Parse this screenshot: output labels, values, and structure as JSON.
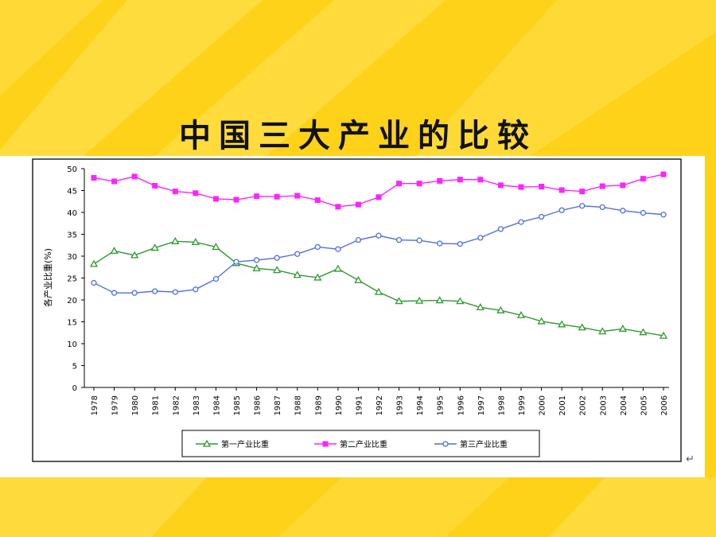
{
  "slide": {
    "title": "中国三大产业的比较",
    "return_mark": "↵"
  },
  "colors": {
    "background": "#FFD21A",
    "stripe": "#FFE45C",
    "primary": "#2E9A2E",
    "secondary": "#FF22FF",
    "tertiary": "#4F6FE0"
  },
  "chart_data": {
    "type": "line",
    "ylabel": "各产业比重(%)",
    "ylim": [
      0,
      50
    ],
    "yticks": [
      0,
      5,
      10,
      15,
      20,
      25,
      30,
      35,
      40,
      45,
      50
    ],
    "grid": false,
    "legend_position": "bottom",
    "x": [
      "1978",
      "1979",
      "1980",
      "1981",
      "1982",
      "1983",
      "1984",
      "1985",
      "1986",
      "1987",
      "1988",
      "1989",
      "1990",
      "1991",
      "1992",
      "1993",
      "1994",
      "1995",
      "1996",
      "1997",
      "1998",
      "1999",
      "2000",
      "2001",
      "2002",
      "2003",
      "2004",
      "2005",
      "2006"
    ],
    "series": [
      {
        "name": "第一产业比重",
        "marker": "triangle",
        "color": "#2E9A2E",
        "values": [
          28.2,
          31.2,
          30.2,
          31.9,
          33.4,
          33.2,
          32.1,
          28.4,
          27.2,
          26.8,
          25.7,
          25.1,
          27.1,
          24.5,
          21.8,
          19.7,
          19.8,
          19.9,
          19.7,
          18.3,
          17.6,
          16.5,
          15.1,
          14.4,
          13.7,
          12.8,
          13.4,
          12.6,
          11.8
        ]
      },
      {
        "name": "第二产业比重",
        "marker": "square",
        "color": "#FF22FF",
        "values": [
          47.9,
          47.1,
          48.2,
          46.1,
          44.8,
          44.4,
          43.1,
          42.9,
          43.7,
          43.6,
          43.8,
          42.8,
          41.3,
          41.8,
          43.5,
          46.6,
          46.6,
          47.2,
          47.5,
          47.5,
          46.2,
          45.8,
          45.9,
          45.1,
          44.8,
          46.0,
          46.2,
          47.7,
          48.7
        ]
      },
      {
        "name": "第三产业比重",
        "marker": "circle",
        "color": "#4F6FE0",
        "values": [
          23.9,
          21.6,
          21.6,
          22.0,
          21.8,
          22.4,
          24.8,
          28.7,
          29.1,
          29.6,
          30.5,
          32.1,
          31.6,
          33.7,
          34.7,
          33.7,
          33.6,
          32.9,
          32.8,
          34.2,
          36.2,
          37.8,
          39.0,
          40.5,
          41.5,
          41.2,
          40.4,
          39.9,
          39.5
        ]
      }
    ]
  }
}
